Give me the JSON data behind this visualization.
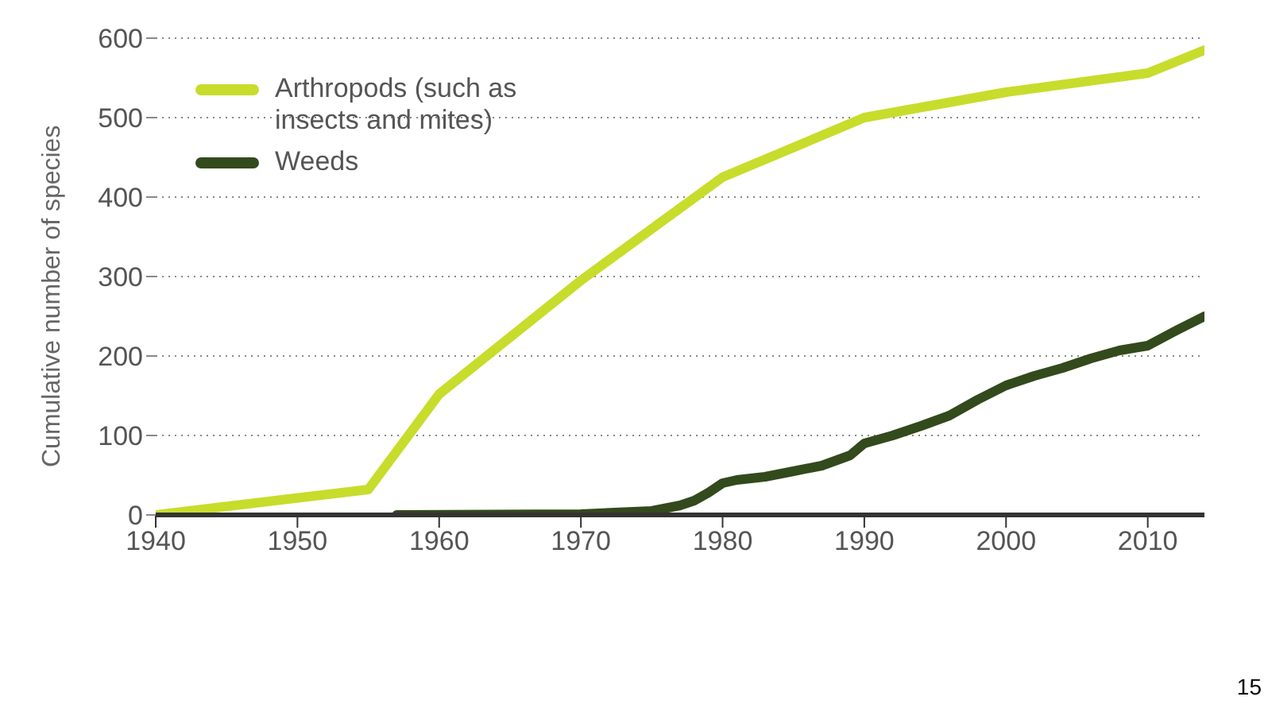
{
  "chart_data": {
    "type": "line",
    "ylabel": "Cumulative number of species",
    "xlim": [
      1940,
      2014
    ],
    "xticks": [
      1940,
      1950,
      1960,
      1970,
      1980,
      1990,
      2000,
      2010
    ],
    "ylim": [
      0,
      600
    ],
    "yticks": [
      0,
      100,
      200,
      300,
      400,
      500,
      600
    ],
    "grid": "y",
    "legend": "top left",
    "marker": "none",
    "line_style": "solid",
    "annotations": [
      "15"
    ],
    "series": [
      {
        "name": "Arthropods (such as insects and mites)",
        "color": "#c8dc2c",
        "x": [
          1940,
          1955,
          1960,
          1970,
          1980,
          1990,
          2000,
          2010,
          2014
        ],
        "values": [
          0,
          32,
          152,
          295,
          425,
          500,
          532,
          556,
          585
        ]
      },
      {
        "name": "Weeds",
        "color": "#334a1c",
        "x": [
          1957,
          1970,
          1975,
          1977,
          1978,
          1979,
          1980,
          1981,
          1983,
          1985,
          1987,
          1989,
          1990,
          1992,
          1994,
          1996,
          1998,
          2000,
          2002,
          2004,
          2006,
          2008,
          2010,
          2012,
          2014
        ],
        "values": [
          0,
          1,
          5,
          12,
          18,
          28,
          40,
          44,
          48,
          55,
          62,
          75,
          90,
          100,
          112,
          125,
          145,
          163,
          175,
          185,
          197,
          207,
          213,
          232,
          250
        ]
      }
    ]
  }
}
